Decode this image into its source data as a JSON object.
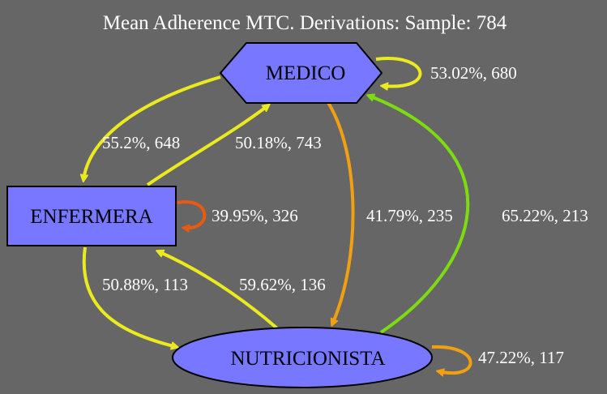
{
  "title": "Mean Adherence MTC. Derivations: Sample: 784",
  "colors": {
    "background": "#666666",
    "node_fill": "#7777ff",
    "yellow": "#eaea1f",
    "orange": "#f0a010",
    "red_orange": "#e85a10",
    "green": "#7ddc10"
  },
  "nodes": {
    "medico": {
      "label": "MEDICO",
      "shape": "hexagon"
    },
    "enfermera": {
      "label": "ENFERMERA",
      "shape": "box"
    },
    "nutricionista": {
      "label": "NUTRICIONISTA",
      "shape": "ellipse"
    }
  },
  "edges": {
    "medico_self": {
      "label": "53.02%, 680",
      "from": "MEDICO",
      "to": "MEDICO",
      "color": "yellow"
    },
    "medico_enfermera": {
      "label": "55.2%, 648",
      "from": "MEDICO",
      "to": "ENFERMERA",
      "color": "yellow"
    },
    "enfermera_medico": {
      "label": "50.18%, 743",
      "from": "ENFERMERA",
      "to": "MEDICO",
      "color": "yellow"
    },
    "enfermera_self": {
      "label": "39.95%, 326",
      "from": "ENFERMERA",
      "to": "ENFERMERA",
      "color": "red_orange"
    },
    "medico_nutricionista": {
      "label": "41.79%, 235",
      "from": "MEDICO",
      "to": "NUTRICIONISTA",
      "color": "orange"
    },
    "nutricionista_medico": {
      "label": "65.22%, 213",
      "from": "NUTRICIONISTA",
      "to": "MEDICO",
      "color": "green"
    },
    "enfermera_nutricionista": {
      "label": "50.88%, 113",
      "from": "ENFERMERA",
      "to": "NUTRICIONISTA",
      "color": "yellow"
    },
    "nutricionista_enfermera": {
      "label": "59.62%, 136",
      "from": "NUTRICIONISTA",
      "to": "ENFERMERA",
      "color": "yellow"
    },
    "nutricionista_self": {
      "label": "47.22%, 117",
      "from": "NUTRICIONISTA",
      "to": "NUTRICIONISTA",
      "color": "orange"
    }
  }
}
